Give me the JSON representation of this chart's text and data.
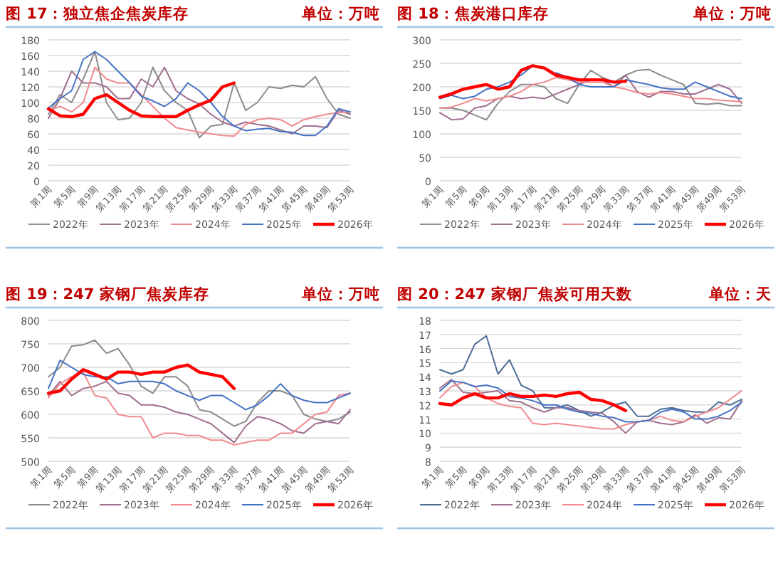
{
  "chart_data": [
    {
      "type": "line",
      "title": "图 17：独立焦企焦炭库存",
      "subtitle": "单位：万吨",
      "categories": [
        "第1周",
        null,
        "第5周",
        null,
        "第9周",
        null,
        "第13周",
        null,
        "第17周",
        null,
        "第21周",
        null,
        "第25周",
        null,
        "第29周",
        null,
        "第33周",
        null,
        "第37周",
        null,
        "第41周",
        null,
        "第45周",
        null,
        "第49周",
        null,
        "第53周"
      ],
      "ylim": [
        0,
        180
      ],
      "yticks": [
        0,
        20,
        40,
        60,
        80,
        100,
        120,
        140,
        160,
        180
      ],
      "grid": "y",
      "legend": "bottom",
      "series": [
        {
          "name": "2022年",
          "color": "#8c8c8c",
          "values": [
            85,
            110,
            100,
            130,
            165,
            100,
            78,
            80,
            100,
            145,
            115,
            100,
            90,
            55,
            70,
            72,
            125,
            90,
            100,
            120,
            118,
            122,
            120,
            133,
            105,
            85,
            80
          ]
        },
        {
          "name": "2023年",
          "color": "#a0708f",
          "values": [
            80,
            105,
            140,
            125,
            125,
            120,
            105,
            105,
            130,
            120,
            145,
            115,
            105,
            98,
            85,
            75,
            70,
            75,
            72,
            70,
            65,
            60,
            70,
            70,
            68,
            90,
            85
          ]
        },
        {
          "name": "2024年",
          "color": "#f08a8f",
          "values": [
            90,
            95,
            88,
            100,
            145,
            130,
            125,
            125,
            110,
            95,
            80,
            68,
            65,
            62,
            60,
            58,
            57,
            72,
            78,
            80,
            78,
            70,
            78,
            82,
            85,
            87,
            88
          ]
        },
        {
          "name": "2025年",
          "color": "#4472c4",
          "values": [
            93,
            105,
            115,
            155,
            165,
            155,
            140,
            125,
            108,
            102,
            95,
            105,
            125,
            115,
            100,
            82,
            70,
            64,
            66,
            67,
            63,
            62,
            58,
            58,
            70,
            92,
            88
          ]
        },
        {
          "name": "2026年",
          "color": "#ff0000",
          "values": [
            92,
            83,
            82,
            85,
            105,
            110,
            100,
            90,
            83,
            82,
            82,
            82,
            90,
            97,
            103,
            120,
            125,
            null,
            null,
            null,
            null,
            null,
            null,
            null,
            null,
            null,
            null
          ]
        }
      ]
    },
    {
      "type": "line",
      "title": "图 18：焦炭港口库存",
      "subtitle": "单位：万吨",
      "categories": [
        "第1周",
        null,
        "第5周",
        null,
        "第9周",
        null,
        "第13周",
        null,
        "第17周",
        null,
        "第21周",
        null,
        "第25周",
        null,
        "第29周",
        null,
        "第33周",
        null,
        "第37周",
        null,
        "第41周",
        null,
        "第45周",
        null,
        "第49周",
        null,
        "第53周"
      ],
      "ylim": [
        0,
        300
      ],
      "yticks": [
        0,
        50,
        100,
        150,
        200,
        250,
        300
      ],
      "grid": "y",
      "legend": "bottom",
      "series": [
        {
          "name": "2022年",
          "color": "#8c8c8c",
          "values": [
            155,
            155,
            150,
            140,
            130,
            165,
            190,
            205,
            205,
            200,
            175,
            165,
            205,
            235,
            220,
            210,
            225,
            235,
            237,
            225,
            215,
            205,
            165,
            163,
            165,
            160,
            160
          ]
        },
        {
          "name": "2023年",
          "color": "#a0708f",
          "values": [
            145,
            130,
            132,
            155,
            160,
            175,
            180,
            175,
            178,
            175,
            185,
            195,
            205,
            215,
            215,
            200,
            225,
            190,
            178,
            190,
            190,
            185,
            185,
            195,
            205,
            195,
            165
          ]
        },
        {
          "name": "2024年",
          "color": "#f08a8f",
          "values": [
            155,
            157,
            165,
            175,
            170,
            175,
            180,
            190,
            205,
            210,
            220,
            215,
            210,
            210,
            210,
            200,
            195,
            188,
            185,
            188,
            185,
            180,
            175,
            175,
            172,
            170,
            168
          ]
        },
        {
          "name": "2025年",
          "color": "#4472c4",
          "values": [
            175,
            182,
            175,
            180,
            195,
            200,
            210,
            225,
            245,
            null,
            230,
            220,
            205,
            200,
            200,
            200,
            215,
            210,
            205,
            198,
            195,
            195,
            210,
            200,
            190,
            180,
            175
          ]
        },
        {
          "name": "2026年",
          "color": "#ff0000",
          "values": [
            178,
            185,
            195,
            200,
            205,
            195,
            200,
            235,
            245,
            240,
            225,
            220,
            215,
            215,
            215,
            210,
            212,
            null,
            null,
            null,
            null,
            null,
            null,
            null,
            null,
            null,
            null
          ]
        }
      ]
    },
    {
      "type": "line",
      "title": "图 19：247 家钢厂焦炭库存",
      "subtitle": "单位：万吨",
      "categories": [
        "第1周",
        null,
        "第5周",
        null,
        "第9周",
        null,
        "第13周",
        null,
        "第17周",
        null,
        "第21周",
        null,
        "第25周",
        null,
        "第29周",
        null,
        "第33周",
        null,
        "第37周",
        null,
        "第41周",
        null,
        "第45周",
        null,
        "第49周",
        null,
        "第53周"
      ],
      "ylim": [
        500,
        800
      ],
      "yticks": [
        500,
        550,
        600,
        650,
        700,
        750,
        800
      ],
      "grid": "y",
      "legend": "bottom",
      "series": [
        {
          "name": "2022年",
          "color": "#8c8c8c",
          "values": [
            680,
            700,
            745,
            748,
            758,
            730,
            740,
            705,
            660,
            645,
            680,
            680,
            660,
            610,
            605,
            590,
            575,
            585,
            625,
            650,
            650,
            640,
            600,
            590,
            585,
            590,
            605
          ]
        },
        {
          "name": "2023年",
          "color": "#a0708f",
          "values": [
            640,
            670,
            640,
            655,
            660,
            670,
            645,
            640,
            620,
            620,
            615,
            605,
            600,
            590,
            580,
            560,
            540,
            575,
            595,
            590,
            580,
            565,
            560,
            580,
            585,
            580,
            610
          ]
        },
        {
          "name": "2024年",
          "color": "#f08a8f",
          "values": [
            635,
            665,
            680,
            690,
            640,
            635,
            600,
            595,
            595,
            550,
            560,
            560,
            555,
            555,
            545,
            545,
            535,
            540,
            545,
            545,
            560,
            560,
            580,
            600,
            605,
            640,
            645
          ]
        },
        {
          "name": "2025年",
          "color": "#4472c4",
          "values": [
            655,
            715,
            700,
            685,
            680,
            680,
            665,
            670,
            670,
            670,
            665,
            650,
            640,
            630,
            640,
            640,
            625,
            610,
            620,
            640,
            665,
            640,
            630,
            625,
            625,
            635,
            645
          ]
        },
        {
          "name": "2026年",
          "color": "#ff0000",
          "values": [
            645,
            650,
            675,
            695,
            685,
            675,
            690,
            690,
            685,
            690,
            690,
            700,
            705,
            690,
            685,
            680,
            655,
            null,
            null,
            null,
            null,
            null,
            null,
            null,
            null,
            null,
            null
          ]
        }
      ]
    },
    {
      "type": "line",
      "title": "图 20：247 家钢厂焦炭可用天数",
      "subtitle": "单位：天",
      "categories": [
        "第1周",
        null,
        "第5周",
        null,
        "第9周",
        null,
        "第13周",
        null,
        "第17周",
        null,
        "第21周",
        null,
        "第25周",
        null,
        "第29周",
        null,
        "第33周",
        null,
        "第37周",
        null,
        "第41周",
        null,
        "第45周",
        null,
        "第49周",
        null,
        "第53周"
      ],
      "ylim": [
        8,
        18
      ],
      "yticks": [
        8,
        9,
        10,
        11,
        12,
        13,
        14,
        15,
        16,
        17,
        18
      ],
      "grid": "y",
      "legend": "bottom",
      "series": [
        {
          "name": "2022年",
          "color": "#4d6d96",
          "values": [
            14.5,
            14.2,
            14.5,
            16.3,
            16.9,
            14.2,
            15.2,
            13.4,
            13.0,
            11.8,
            11.8,
            12.0,
            11.6,
            11.2,
            11.5,
            12.0,
            12.2,
            11.2,
            11.2,
            11.7,
            11.8,
            11.6,
            11.5,
            11.5,
            12.2,
            12.0,
            12.4
          ]
        },
        {
          "name": "2023年",
          "color": "#a0708f",
          "values": [
            13.2,
            13.8,
            12.9,
            12.8,
            12.9,
            13.0,
            12.3,
            12.2,
            11.8,
            11.5,
            11.8,
            11.8,
            11.6,
            11.5,
            11.4,
            10.8,
            10.0,
            10.8,
            10.9,
            10.7,
            10.6,
            10.8,
            11.3,
            10.7,
            11.1,
            11.0,
            12.3
          ]
        },
        {
          "name": "2024年",
          "color": "#f08a8f",
          "values": [
            12.5,
            13.3,
            13.6,
            13.3,
            12.5,
            12.1,
            11.9,
            11.8,
            10.7,
            10.6,
            10.7,
            10.6,
            10.5,
            10.4,
            10.3,
            10.3,
            10.6,
            10.8,
            10.9,
            11.2,
            10.9,
            10.8,
            11.2,
            11.5,
            11.8,
            12.4,
            13.0
          ]
        },
        {
          "name": "2025年",
          "color": "#4472c4",
          "values": [
            13.0,
            13.7,
            13.6,
            13.3,
            13.4,
            13.2,
            12.6,
            12.5,
            12.3,
            12.0,
            12.0,
            11.7,
            11.5,
            11.4,
            11.2,
            11.1,
            10.8,
            10.8,
            10.9,
            11.5,
            11.7,
            11.5,
            11.0,
            11.0,
            11.2,
            11.6,
            12.2
          ]
        },
        {
          "name": "2026年",
          "color": "#ff0000",
          "values": [
            12.1,
            12.0,
            12.5,
            12.8,
            12.5,
            12.5,
            12.8,
            12.6,
            12.6,
            12.7,
            12.6,
            12.8,
            12.9,
            12.4,
            12.3,
            12.0,
            11.6,
            null,
            null,
            null,
            null,
            null,
            null,
            null,
            null,
            null,
            null
          ]
        }
      ]
    }
  ]
}
